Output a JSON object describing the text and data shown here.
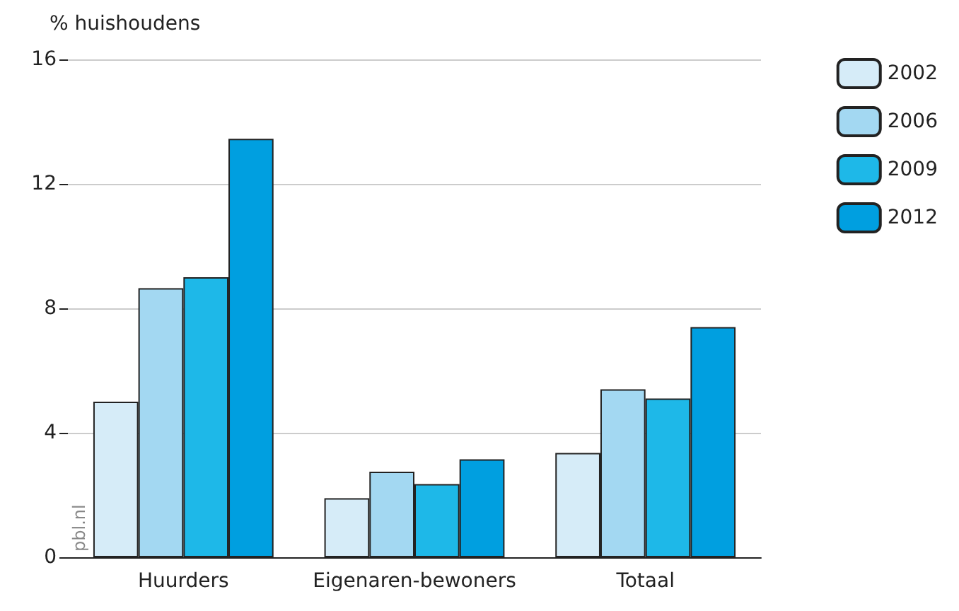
{
  "chart_data": {
    "type": "bar",
    "ylabel": "% huishoudens",
    "categories": [
      "Huurders",
      "Eigenaren-bewoners",
      "Totaal"
    ],
    "series": [
      {
        "name": "2002",
        "color": "#d6ecf8",
        "values": [
          5.0,
          1.9,
          3.35
        ]
      },
      {
        "name": "2006",
        "color": "#a3d8f2",
        "values": [
          8.65,
          2.75,
          5.4
        ]
      },
      {
        "name": "2009",
        "color": "#1eb8e8",
        "values": [
          9.0,
          2.35,
          5.1
        ]
      },
      {
        "name": "2012",
        "color": "#009fe0",
        "values": [
          13.45,
          3.15,
          7.4
        ]
      }
    ],
    "ylim": [
      0,
      16
    ],
    "yticks": [
      0,
      4,
      8,
      12,
      16
    ],
    "grid": "y",
    "legend": "top right",
    "annotations": [
      "pbl.nl"
    ]
  }
}
